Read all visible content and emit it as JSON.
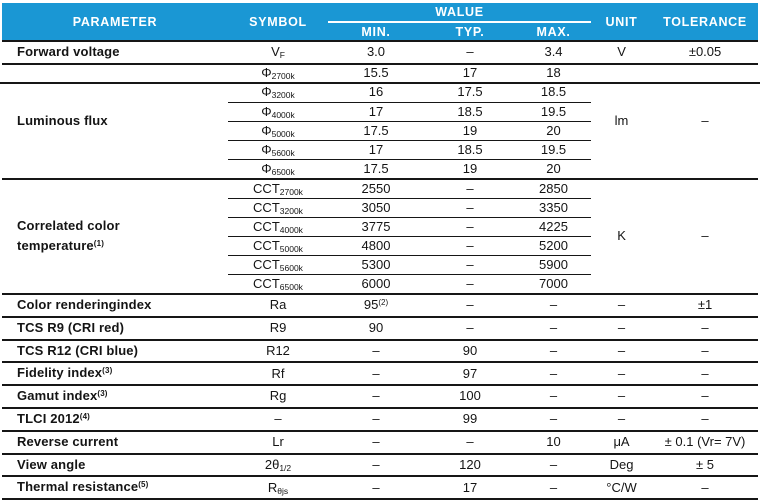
{
  "colors": {
    "header_bg": "#1a97d4",
    "header_text": "#ffffff",
    "grid_line": "#161616",
    "body_text": "#141414",
    "background": "#ffffff"
  },
  "header": {
    "parameter": "PARAMETER",
    "symbol": "SYMBOL",
    "value": "WALUE",
    "min": "MIN.",
    "typ": "TYP.",
    "max": "MAX.",
    "unit": "UNIT",
    "tolerance": "TOLERANCE"
  },
  "sections": [
    {
      "parameter": "Forward voltage",
      "unit": "V",
      "tolerance": "±0.05",
      "subrows": [
        {
          "sym": "V_F",
          "min": "3.0",
          "typ": "–",
          "max": "3.4"
        }
      ]
    },
    {
      "parameter": "Luminous flux",
      "unit": "lm",
      "tolerance": "–",
      "subrows": [
        {
          "sym": "Φ_2700k",
          "min": "15.5",
          "typ": "17",
          "max": "18",
          "full_width_divider_below": true
        },
        {
          "sym": "Φ_3200k",
          "min": "16",
          "typ": "17.5",
          "max": "18.5"
        },
        {
          "sym": "Φ_4000k",
          "min": "17",
          "typ": "18.5",
          "max": "19.5"
        },
        {
          "sym": "Φ_5000k",
          "min": "17.5",
          "typ": "19",
          "max": "20"
        },
        {
          "sym": "Φ_5600k",
          "min": "17",
          "typ": "18.5",
          "max": "19.5"
        },
        {
          "sym": "Φ_6500k",
          "min": "17.5",
          "typ": "19",
          "max": "20"
        }
      ]
    },
    {
      "parameter": "Correlated color\ntemperature^(1)",
      "unit": "K",
      "tolerance": "–",
      "subrows": [
        {
          "sym": "CCT_2700k",
          "min": "2550",
          "typ": "–",
          "max": "2850"
        },
        {
          "sym": "CCT_3200k",
          "min": "3050",
          "typ": "–",
          "max": "3350"
        },
        {
          "sym": "CCT_4000k",
          "min": "3775",
          "typ": "–",
          "max": "4225"
        },
        {
          "sym": "CCT_5000k",
          "min": "4800",
          "typ": "–",
          "max": "5200"
        },
        {
          "sym": "CCT_5600k",
          "min": "5300",
          "typ": "–",
          "max": "5900"
        },
        {
          "sym": "CCT_6500k",
          "min": "6000",
          "typ": "–",
          "max": "7000"
        }
      ]
    },
    {
      "parameter": "Color renderingindex",
      "unit": "–",
      "tolerance": "±1",
      "subrows": [
        {
          "sym": "Ra",
          "min": "95^(2)",
          "typ": "–",
          "max": "–"
        }
      ]
    },
    {
      "parameter": "TCS R9 (CRI red)",
      "unit": "–",
      "tolerance": "–",
      "subrows": [
        {
          "sym": "R9",
          "min": "90",
          "typ": "–",
          "max": "–"
        }
      ]
    },
    {
      "parameter": "TCS R12 (CRI blue)",
      "unit": "–",
      "tolerance": "–",
      "subrows": [
        {
          "sym": "R12",
          "min": "–",
          "typ": "90",
          "max": "–"
        }
      ]
    },
    {
      "parameter": "Fidelity index^(3)",
      "unit": "–",
      "tolerance": "–",
      "subrows": [
        {
          "sym": "Rf",
          "min": "–",
          "typ": "97",
          "max": "–"
        }
      ]
    },
    {
      "parameter": "Gamut index^(3)",
      "unit": "–",
      "tolerance": "–",
      "subrows": [
        {
          "sym": "Rg",
          "min": "–",
          "typ": "100",
          "max": "–"
        }
      ]
    },
    {
      "parameter": "TLCI 2012^(4)",
      "unit": "–",
      "tolerance": "–",
      "subrows": [
        {
          "sym": "–",
          "min": "–",
          "typ": "99",
          "max": "–"
        }
      ]
    },
    {
      "parameter": "Reverse current",
      "unit": "μA",
      "tolerance": "± 0.1 (Vr= 7V)",
      "subrows": [
        {
          "sym": "Lr",
          "min": "–",
          "typ": "–",
          "max": "10"
        }
      ]
    },
    {
      "parameter": "View angle",
      "unit": "Deg",
      "tolerance": "± 5",
      "subrows": [
        {
          "sym": "2θ_1/2",
          "min": "–",
          "typ": "120",
          "max": "–"
        }
      ]
    },
    {
      "parameter": "Thermal resistance^(5)",
      "unit": "°C/W",
      "tolerance": "–",
      "subrows": [
        {
          "sym": "R_θjs",
          "min": "–",
          "typ": "17",
          "max": "–"
        }
      ]
    }
  ]
}
